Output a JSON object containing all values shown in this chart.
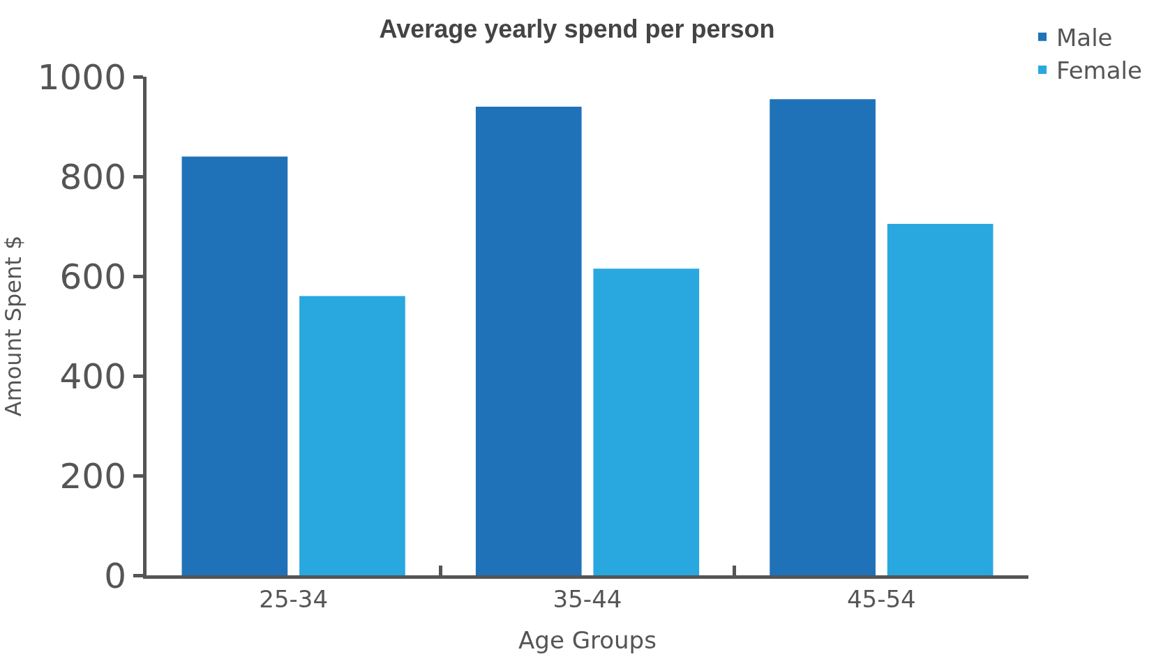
{
  "chart_data": {
    "type": "bar",
    "title": "Average yearly spend per person",
    "xlabel": "Age Groups",
    "ylabel": "Amount Spent $",
    "categories": [
      "25-34",
      "35-44",
      "45-54"
    ],
    "series": [
      {
        "name": "Male",
        "color": "#1f72b8",
        "values": [
          840,
          940,
          955
        ]
      },
      {
        "name": "Female",
        "color": "#29a8e0",
        "values": [
          560,
          615,
          705
        ]
      }
    ],
    "ylim": [
      0,
      1000
    ],
    "yticks": [
      0,
      200,
      400,
      600,
      800,
      1000
    ],
    "grid": false,
    "legend": "top right"
  }
}
